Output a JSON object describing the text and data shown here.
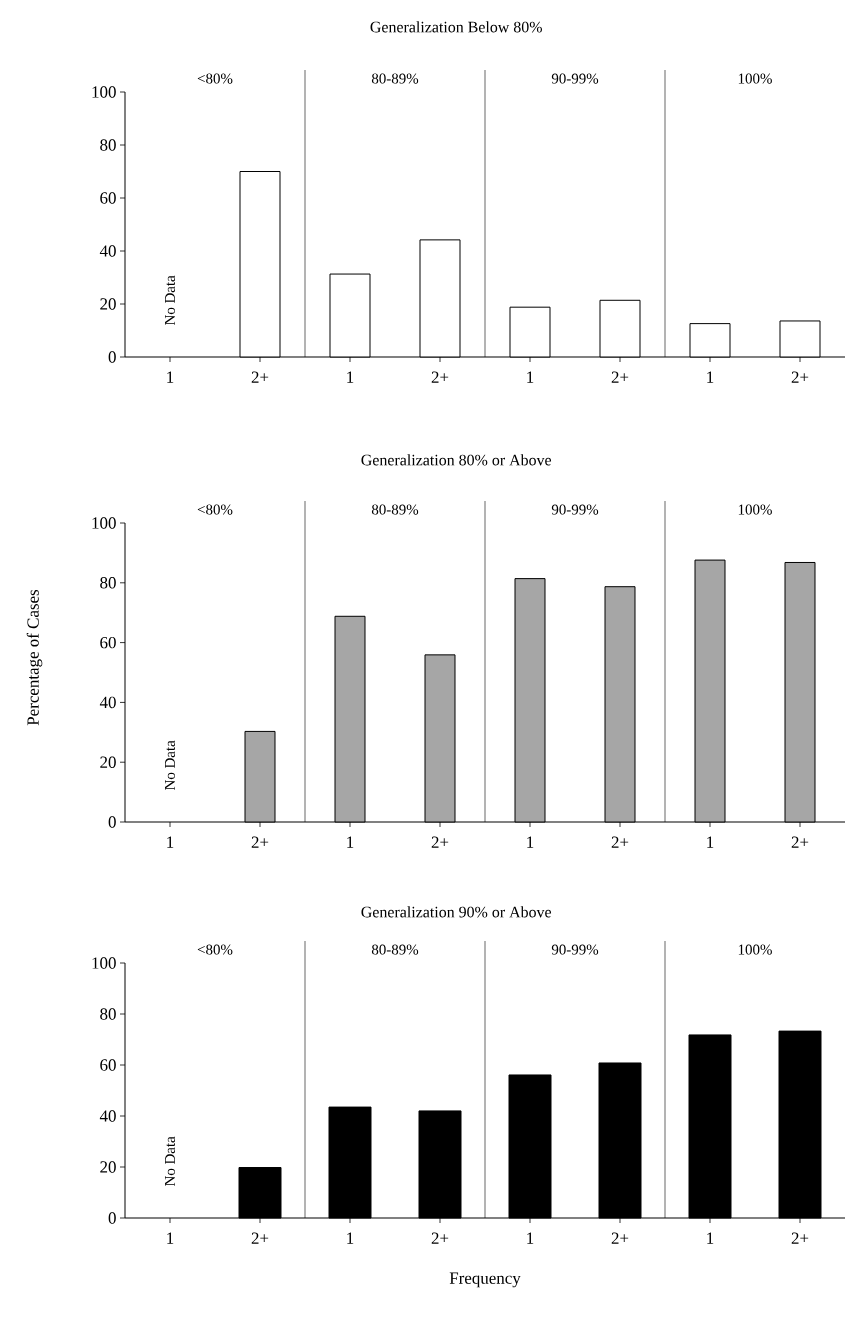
{
  "chart_data": [
    {
      "type": "bar",
      "title": "Generalization Below 80%",
      "categories": [
        "1",
        "2+",
        "1",
        "2+",
        "1",
        "2+",
        "1",
        "2+"
      ],
      "values": [
        null,
        70,
        31.3,
        44.2,
        18.8,
        21.4,
        12.6,
        13.6
      ],
      "color": "#ffffff",
      "ylim": [
        0,
        100
      ],
      "yticks": [
        0,
        20,
        40,
        60,
        80,
        100
      ],
      "annotations": [
        "<80%",
        "80-89%",
        "90-99%",
        "100%",
        "No Data"
      ]
    },
    {
      "type": "bar",
      "title": "Generalization 80% or Above",
      "ylabel": "Percentage of Cases",
      "categories": [
        "1",
        "2+",
        "1",
        "2+",
        "1",
        "2+",
        "1",
        "2+"
      ],
      "values": [
        null,
        30.3,
        68.8,
        55.9,
        81.4,
        78.7,
        87.6,
        86.8
      ],
      "color": "#a6a6a6",
      "ylim": [
        0,
        100
      ],
      "yticks": [
        0,
        20,
        40,
        60,
        80,
        100
      ],
      "annotations": [
        "<80%",
        "80-89%",
        "90-99%",
        "100%",
        "No Data"
      ]
    },
    {
      "type": "bar",
      "title": "Generalization 90% or Above",
      "xlabel": "Frequency",
      "categories": [
        "1",
        "2+",
        "1",
        "2+",
        "1",
        "2+",
        "1",
        "2+"
      ],
      "values": [
        null,
        19.8,
        43.5,
        42,
        56.1,
        60.8,
        71.8,
        73.3
      ],
      "color": "#000000",
      "ylim": [
        0,
        100
      ],
      "yticks": [
        0,
        20,
        40,
        60,
        80,
        100
      ],
      "annotations": [
        "<80%",
        "80-89%",
        "90-99%",
        "100%",
        "No Data"
      ]
    }
  ]
}
